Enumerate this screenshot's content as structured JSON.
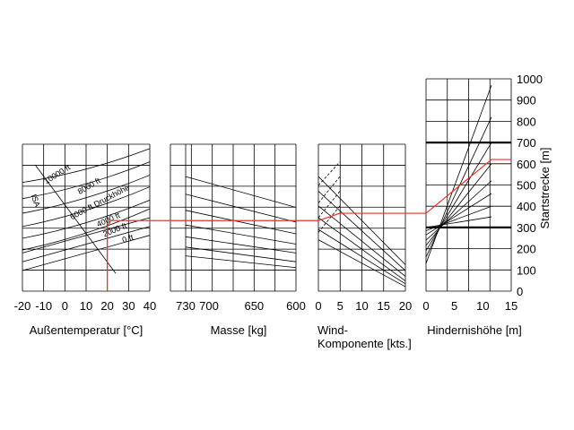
{
  "chart_data": {
    "type": "line",
    "panels": [
      {
        "id": "temperature",
        "xlabel": "Außentemperatur [°C]",
        "xlim": [
          -20,
          40
        ],
        "x_ticks": [
          "-20",
          "-10",
          "0",
          "10",
          "20",
          "30",
          "40"
        ],
        "curve_labels": [
          "10000 ft",
          "8000 ft",
          "6000 ft Druckhöhe",
          "4000 ft",
          "2000 ft",
          "0 ft",
          "ISA"
        ]
      },
      {
        "id": "mass",
        "xlabel": "Masse [kg]",
        "x_ticks": [
          "730",
          "700",
          "650",
          "600"
        ]
      },
      {
        "id": "wind",
        "xlabel_lines": [
          "Wind-",
          "Komponente [kts.]"
        ],
        "x_ticks": [
          "0",
          "5",
          "10",
          "15",
          "20"
        ]
      },
      {
        "id": "obstacle",
        "xlabel": "Hindernishöhe [m]",
        "x_ticks": [
          "0",
          "5",
          "10",
          "15"
        ]
      }
    ],
    "ylabel": "Startstrecke [m]",
    "ylim": [
      0,
      1000
    ],
    "y_ticks": [
      "0",
      "100",
      "200",
      "300",
      "400",
      "500",
      "600",
      "700",
      "800",
      "900",
      "1000"
    ],
    "example_path": {
      "color": "#e8302a",
      "temperature_c": 20,
      "obstacle_height_m": 15,
      "takeoff_distance_m": 620
    }
  }
}
